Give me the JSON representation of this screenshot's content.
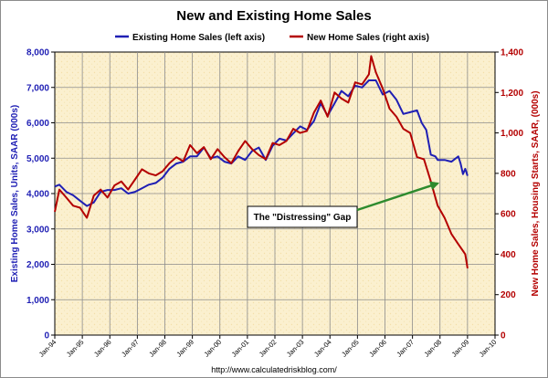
{
  "chart_data": {
    "type": "line",
    "title": "New and Existing Home Sales",
    "legend": {
      "placement": "top-center",
      "entries": [
        "Existing Home Sales (left axis)",
        "New Home Sales (right axis)"
      ]
    },
    "left_axis": {
      "label": "Existing Home Sales, Units, SAAR (000s)",
      "range": [
        0,
        8000
      ],
      "ticks": [
        "0",
        "1,000",
        "2,000",
        "3,000",
        "4,000",
        "5,000",
        "6,000",
        "7,000",
        "8,000"
      ],
      "tick_values": [
        0,
        1000,
        2000,
        3000,
        4000,
        5000,
        6000,
        7000,
        8000
      ]
    },
    "right_axis": {
      "label": "New Home Sales, Housing Starts, SAAR, (000s)",
      "range": [
        0,
        1400
      ],
      "ticks": [
        "0",
        "200",
        "400",
        "600",
        "800",
        "1,000",
        "1,200",
        "1,400"
      ],
      "tick_values": [
        0,
        200,
        400,
        600,
        800,
        1000,
        1200,
        1400
      ]
    },
    "x_axis": {
      "range": [
        1994.0,
        2010.0
      ],
      "ticks": [
        "Jan-94",
        "Jan-95",
        "Jan-96",
        "Jan-97",
        "Jan-98",
        "Jan-99",
        "Jan-00",
        "Jan-01",
        "Jan-02",
        "Jan-03",
        "Jan-04",
        "Jan-05",
        "Jan-06",
        "Jan-07",
        "Jan-08",
        "Jan-09",
        "Jan-10"
      ]
    },
    "grid": true,
    "colors": {
      "existing": "#1f1fb4",
      "new": "#b40000",
      "plot_background": "#fbf0cf",
      "grid": "#8c8c8c",
      "annotation_arrow": "#2e8b2e"
    },
    "annotation": {
      "text": "The \"Distressing\" Gap",
      "arrow_to_date": "Dec-07",
      "arrow_to_value_right_axis": 750
    },
    "source": "http://www.calculatedriskblog.com/",
    "series": [
      {
        "name": "Existing Home Sales (left axis)",
        "axis": "left",
        "points": [
          [
            "Jan-94",
            4200
          ],
          [
            "Mar-94",
            4250
          ],
          [
            "Jun-94",
            4050
          ],
          [
            "Sep-94",
            3950
          ],
          [
            "Dec-94",
            3800
          ],
          [
            "Mar-95",
            3650
          ],
          [
            "Jun-95",
            3750
          ],
          [
            "Sep-95",
            4050
          ],
          [
            "Dec-95",
            4100
          ],
          [
            "Mar-96",
            4100
          ],
          [
            "Jun-96",
            4150
          ],
          [
            "Sep-96",
            4000
          ],
          [
            "Dec-96",
            4050
          ],
          [
            "Mar-97",
            4150
          ],
          [
            "Jun-97",
            4250
          ],
          [
            "Sep-97",
            4300
          ],
          [
            "Dec-97",
            4450
          ],
          [
            "Mar-98",
            4700
          ],
          [
            "Jun-98",
            4850
          ],
          [
            "Sep-98",
            4900
          ],
          [
            "Dec-98",
            5050
          ],
          [
            "Mar-99",
            5050
          ],
          [
            "Jun-99",
            5300
          ],
          [
            "Sep-99",
            5000
          ],
          [
            "Dec-99",
            5050
          ],
          [
            "Mar-00",
            4900
          ],
          [
            "Jun-00",
            4850
          ],
          [
            "Sep-00",
            5050
          ],
          [
            "Dec-00",
            4950
          ],
          [
            "Mar-01",
            5200
          ],
          [
            "Jun-01",
            5300
          ],
          [
            "Sep-01",
            4950
          ],
          [
            "Dec-01",
            5350
          ],
          [
            "Mar-02",
            5550
          ],
          [
            "Jun-02",
            5500
          ],
          [
            "Sep-02",
            5700
          ],
          [
            "Dec-02",
            5900
          ],
          [
            "Mar-03",
            5800
          ],
          [
            "Jun-03",
            6050
          ],
          [
            "Sep-03",
            6550
          ],
          [
            "Dec-03",
            6200
          ],
          [
            "Mar-04",
            6550
          ],
          [
            "Jun-04",
            6900
          ],
          [
            "Sep-04",
            6750
          ],
          [
            "Dec-04",
            7050
          ],
          [
            "Mar-05",
            7000
          ],
          [
            "Jun-05",
            7200
          ],
          [
            "Sep-05",
            7200
          ],
          [
            "Dec-05",
            6800
          ],
          [
            "Mar-06",
            6900
          ],
          [
            "Jun-06",
            6650
          ],
          [
            "Sep-06",
            6250
          ],
          [
            "Dec-06",
            6300
          ],
          [
            "Mar-07",
            6350
          ],
          [
            "May-07",
            6000
          ],
          [
            "Jul-07",
            5800
          ],
          [
            "Sep-07",
            5100
          ],
          [
            "Nov-07",
            5050
          ],
          [
            "Dec-07",
            4950
          ],
          [
            "Mar-08",
            4950
          ],
          [
            "Jun-08",
            4900
          ],
          [
            "Sep-08",
            5050
          ],
          [
            "Oct-08",
            4850
          ],
          [
            "Nov-08",
            4550
          ],
          [
            "Dec-08",
            4700
          ],
          [
            "Jan-09",
            4500
          ]
        ]
      },
      {
        "name": "New Home Sales (right axis)",
        "axis": "right",
        "points": [
          [
            "Jan-94",
            610
          ],
          [
            "Mar-94",
            720
          ],
          [
            "Jun-94",
            680
          ],
          [
            "Sep-94",
            640
          ],
          [
            "Dec-94",
            630
          ],
          [
            "Mar-95",
            580
          ],
          [
            "Jun-95",
            690
          ],
          [
            "Sep-95",
            720
          ],
          [
            "Dec-95",
            680
          ],
          [
            "Mar-96",
            740
          ],
          [
            "Jun-96",
            760
          ],
          [
            "Sep-96",
            720
          ],
          [
            "Dec-96",
            770
          ],
          [
            "Mar-97",
            820
          ],
          [
            "Jun-97",
            800
          ],
          [
            "Sep-97",
            790
          ],
          [
            "Dec-97",
            810
          ],
          [
            "Mar-98",
            850
          ],
          [
            "Jun-98",
            880
          ],
          [
            "Sep-98",
            860
          ],
          [
            "Dec-98",
            940
          ],
          [
            "Mar-99",
            900
          ],
          [
            "Jun-99",
            930
          ],
          [
            "Sep-99",
            870
          ],
          [
            "Dec-99",
            920
          ],
          [
            "Mar-00",
            880
          ],
          [
            "Jun-00",
            850
          ],
          [
            "Sep-00",
            910
          ],
          [
            "Dec-00",
            960
          ],
          [
            "Mar-01",
            920
          ],
          [
            "Jun-01",
            890
          ],
          [
            "Sep-01",
            870
          ],
          [
            "Dec-01",
            950
          ],
          [
            "Mar-02",
            940
          ],
          [
            "Jun-02",
            960
          ],
          [
            "Sep-02",
            1020
          ],
          [
            "Dec-02",
            1000
          ],
          [
            "Mar-03",
            1010
          ],
          [
            "Jun-03",
            1100
          ],
          [
            "Sep-03",
            1160
          ],
          [
            "Dec-03",
            1080
          ],
          [
            "Mar-04",
            1200
          ],
          [
            "Jun-04",
            1170
          ],
          [
            "Sep-04",
            1150
          ],
          [
            "Dec-04",
            1250
          ],
          [
            "Mar-05",
            1240
          ],
          [
            "Jun-05",
            1290
          ],
          [
            "Jul-05",
            1380
          ],
          [
            "Sep-05",
            1300
          ],
          [
            "Dec-05",
            1220
          ],
          [
            "Mar-06",
            1120
          ],
          [
            "Jun-06",
            1080
          ],
          [
            "Sep-06",
            1020
          ],
          [
            "Dec-06",
            1000
          ],
          [
            "Mar-07",
            880
          ],
          [
            "Jun-07",
            870
          ],
          [
            "Sep-07",
            760
          ],
          [
            "Dec-07",
            640
          ],
          [
            "Mar-08",
            580
          ],
          [
            "Jun-08",
            500
          ],
          [
            "Sep-08",
            450
          ],
          [
            "Dec-08",
            400
          ],
          [
            "Jan-09",
            330
          ]
        ]
      }
    ]
  }
}
